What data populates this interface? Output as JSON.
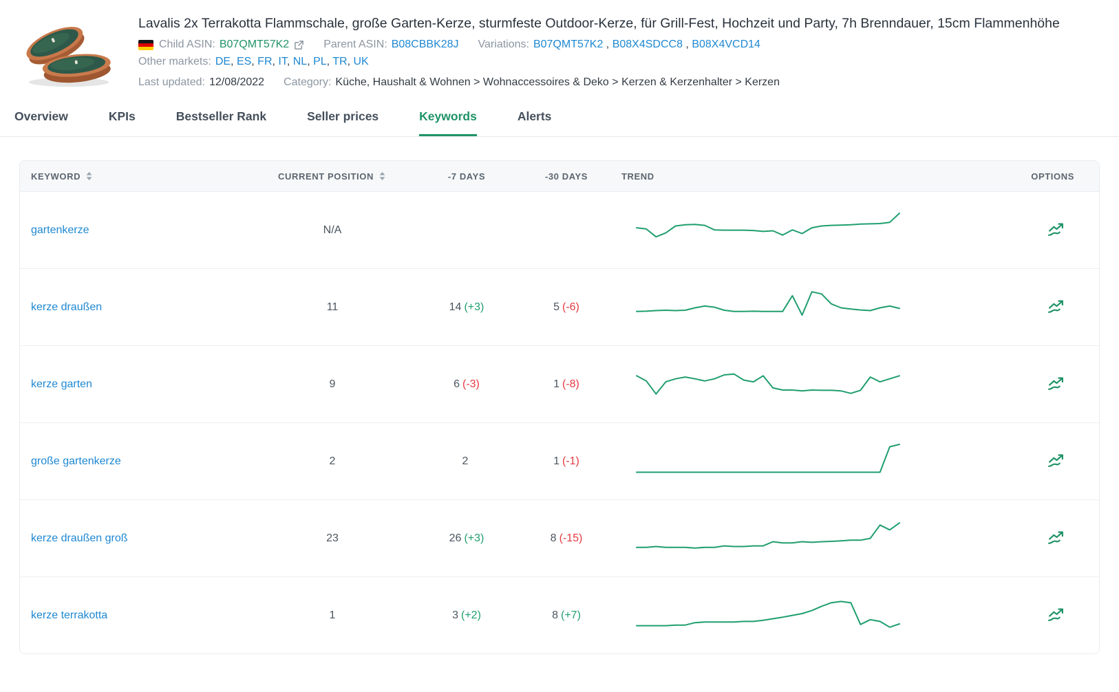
{
  "product": {
    "title": "Lavalis 2x Terrakotta Flammschale, große Garten-Kerze, sturmfeste Outdoor-Kerze, für Grill-Fest, Hochzeit und Party, 7h Brenndauer, 15cm Flammenhöhe",
    "child_asin_label": "Child ASIN:",
    "child_asin": "B07QMT57K2",
    "parent_asin_label": "Parent ASIN:",
    "parent_asin": "B08CBBK28J",
    "variations_label": "Variations:",
    "variations": [
      "B07QMT57K2",
      "B08X4SDCC8",
      "B08X4VCD14"
    ],
    "other_markets_label": "Other markets:",
    "other_markets": [
      "DE",
      "ES",
      "FR",
      "IT",
      "NL",
      "PL",
      "TR",
      "UK"
    ],
    "last_updated_label": "Last updated:",
    "last_updated": "12/08/2022",
    "category_label": "Category:",
    "category": "Küche, Haushalt & Wohnen > Wohnaccessoires & Deko > Kerzen & Kerzenhalter > Kerzen"
  },
  "tabs": [
    {
      "label": "Overview",
      "active": false
    },
    {
      "label": "KPIs",
      "active": false
    },
    {
      "label": "Bestseller Rank",
      "active": false
    },
    {
      "label": "Seller prices",
      "active": false
    },
    {
      "label": "Keywords",
      "active": true
    },
    {
      "label": "Alerts",
      "active": false
    }
  ],
  "table": {
    "headers": {
      "keyword": "KEYWORD",
      "current_position": "CURRENT POSITION",
      "d7": "-7 DAYS",
      "d30": "-30 DAYS",
      "trend": "TREND",
      "options": "OPTIONS"
    },
    "rows": [
      {
        "keyword": "gartenkerze",
        "current": "N/A",
        "d7": "",
        "d7_delta": "",
        "d30": "",
        "d30_delta": "",
        "trend": [
          0.52,
          0.48,
          0.22,
          0.35,
          0.58,
          0.62,
          0.63,
          0.6,
          0.45,
          0.44,
          0.44,
          0.44,
          0.43,
          0.4,
          0.42,
          0.28,
          0.45,
          0.33,
          0.52,
          0.58,
          0.6,
          0.61,
          0.62,
          0.64,
          0.65,
          0.66,
          0.7,
          1.0
        ]
      },
      {
        "keyword": "kerze draußen",
        "current": "11",
        "d7": "14",
        "d7_delta": "(+3)",
        "d30": "5",
        "d30_delta": "(-6)",
        "trend": [
          0.3,
          0.31,
          0.33,
          0.34,
          0.33,
          0.34,
          0.42,
          0.48,
          0.44,
          0.34,
          0.3,
          0.3,
          0.31,
          0.3,
          0.3,
          0.3,
          0.82,
          0.18,
          0.95,
          0.88,
          0.55,
          0.42,
          0.38,
          0.35,
          0.33,
          0.42,
          0.48,
          0.4
        ]
      },
      {
        "keyword": "kerze garten",
        "current": "9",
        "d7": "6",
        "d7_delta": "(-3)",
        "d30": "1",
        "d30_delta": "(-8)",
        "trend": [
          0.72,
          0.55,
          0.12,
          0.52,
          0.62,
          0.68,
          0.62,
          0.55,
          0.62,
          0.75,
          0.78,
          0.58,
          0.52,
          0.72,
          0.32,
          0.25,
          0.25,
          0.22,
          0.25,
          0.24,
          0.24,
          0.22,
          0.14,
          0.24,
          0.68,
          0.52,
          0.62,
          0.72
        ]
      },
      {
        "keyword": "große gartenkerze",
        "current": "2",
        "d7": "2",
        "d7_delta": "",
        "d30": "1",
        "d30_delta": "(-1)",
        "trend": [
          0.08,
          0.08,
          0.08,
          0.08,
          0.08,
          0.08,
          0.08,
          0.08,
          0.08,
          0.08,
          0.08,
          0.08,
          0.08,
          0.08,
          0.08,
          0.08,
          0.08,
          0.08,
          0.08,
          0.08,
          0.08,
          0.08,
          0.08,
          0.08,
          0.08,
          0.08,
          0.92,
          1.0
        ]
      },
      {
        "keyword": "kerze draußen groß",
        "current": "23",
        "d7": "26",
        "d7_delta": "(+3)",
        "d30": "8",
        "d30_delta": "(-15)",
        "trend": [
          0.14,
          0.14,
          0.17,
          0.14,
          0.14,
          0.14,
          0.12,
          0.14,
          0.14,
          0.19,
          0.17,
          0.17,
          0.19,
          0.19,
          0.33,
          0.29,
          0.29,
          0.33,
          0.31,
          0.33,
          0.34,
          0.36,
          0.38,
          0.38,
          0.44,
          0.88,
          0.72,
          0.95
        ]
      },
      {
        "keyword": "kerze terrakotta",
        "current": "1",
        "d7": "3",
        "d7_delta": "(+2)",
        "d30": "8",
        "d30_delta": "(+7)",
        "trend": [
          0.1,
          0.1,
          0.1,
          0.1,
          0.12,
          0.12,
          0.2,
          0.22,
          0.22,
          0.22,
          0.22,
          0.24,
          0.24,
          0.28,
          0.33,
          0.38,
          0.44,
          0.5,
          0.6,
          0.74,
          0.86,
          0.9,
          0.86,
          0.14,
          0.3,
          0.24,
          0.05,
          0.16
        ]
      }
    ]
  },
  "colors": {
    "accent_green": "#1f9367",
    "link_blue": "#1e88d2",
    "delta_up": "#1d9e6d",
    "delta_down": "#e53940",
    "sparkline": "#1f9e6e"
  }
}
